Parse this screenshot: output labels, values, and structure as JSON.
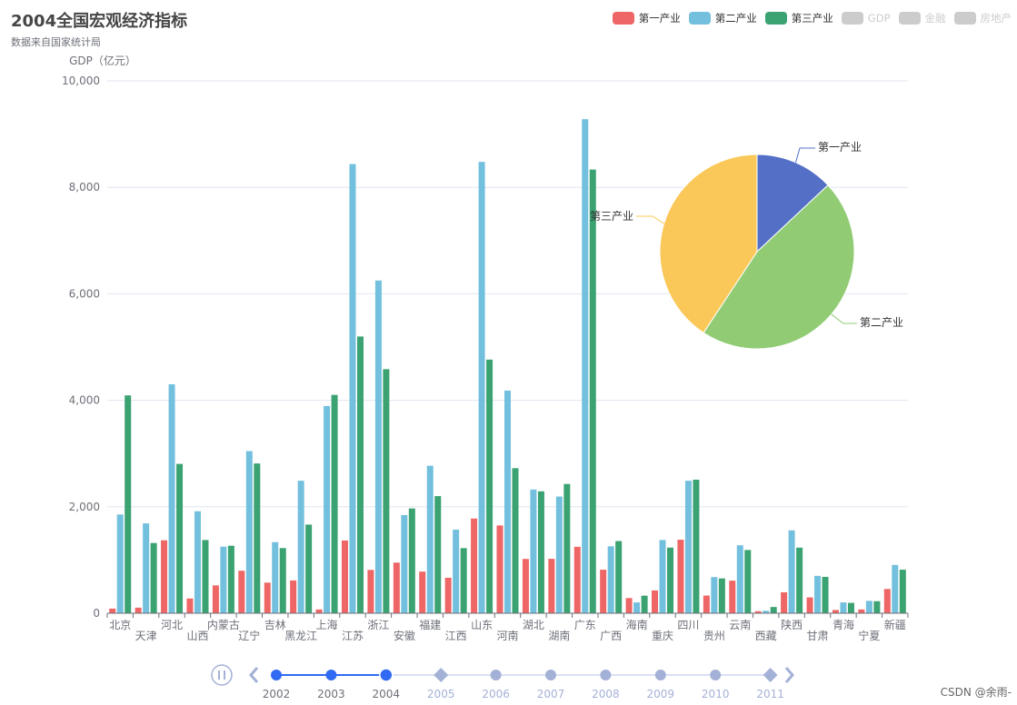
{
  "header": {
    "title": "2004全国宏观经济指标",
    "subtitle": "数据来自国家统计局"
  },
  "legend": [
    {
      "label": "第一产业",
      "color": "#ee6666",
      "active": true
    },
    {
      "label": "第二产业",
      "color": "#73c0de",
      "active": true
    },
    {
      "label": "第三产业",
      "color": "#3ba272",
      "active": true
    },
    {
      "label": "GDP",
      "color": "#cccccc",
      "active": false
    },
    {
      "label": "金融",
      "color": "#cccccc",
      "active": false
    },
    {
      "label": "房地产",
      "color": "#cccccc",
      "active": false
    }
  ],
  "chart_data": [
    {
      "type": "bar",
      "ylabel": "GDP（亿元）",
      "ylim": [
        0,
        10000
      ],
      "yticks": [
        "0",
        "2,000",
        "4,000",
        "6,000",
        "8,000",
        "10,000"
      ],
      "grid": true,
      "categories": [
        "北京",
        "天津",
        "河北",
        "山西",
        "内蒙古",
        "辽宁",
        "吉林",
        "黑龙江",
        "上海",
        "江苏",
        "浙江",
        "安徽",
        "福建",
        "江西",
        "山东",
        "河南",
        "湖北",
        "湖南",
        "广东",
        "广西",
        "海南",
        "重庆",
        "四川",
        "贵州",
        "云南",
        "西藏",
        "陕西",
        "甘肃",
        "青海",
        "宁夏",
        "新疆"
      ],
      "series": [
        {
          "name": "第一产业",
          "color": "#ee6666",
          "values": [
            87,
            105,
            1370,
            277,
            523,
            798,
            575,
            616,
            71,
            1366,
            814,
            951,
            782,
            667,
            1779,
            1649,
            1020,
            1022,
            1248,
            818,
            285,
            428,
            1381,
            332,
            612,
            38,
            394,
            297,
            61,
            71,
            456
          ]
        },
        {
          "name": "第二产业",
          "color": "#73c0de",
          "values": [
            1854,
            1688,
            4301,
            1916,
            1251,
            3045,
            1335,
            2489,
            3892,
            8437,
            6250,
            1844,
            2771,
            1570,
            8478,
            4182,
            2324,
            2192,
            9280,
            1257,
            203,
            1376,
            2489,
            679,
            1277,
            47,
            1557,
            702,
            204,
            232,
            907
          ]
        },
        {
          "name": "第三产业",
          "color": "#3ba272",
          "values": [
            4092,
            1319,
            2805,
            1375,
            1268,
            2813,
            1224,
            1665,
            4101,
            5198,
            4584,
            1968,
            2200,
            1223,
            4764,
            2725,
            2290,
            2428,
            8334,
            1356,
            330,
            1233,
            2509,
            654,
            1188,
            117,
            1232,
            683,
            195,
            226,
            818
          ]
        }
      ]
    },
    {
      "type": "pie",
      "slices": [
        {
          "name": "第一产业",
          "value": 20768,
          "color": "#5470c6"
        },
        {
          "name": "第二产业",
          "value": 73904,
          "color": "#91cc75"
        },
        {
          "name": "第三产业",
          "value": 65018,
          "color": "#fac858"
        }
      ]
    }
  ],
  "timeline": {
    "years": [
      "2002",
      "2003",
      "2004",
      "2005",
      "2006",
      "2007",
      "2008",
      "2009",
      "2010",
      "2011"
    ],
    "current": "2004",
    "playing": true
  },
  "watermark": "CSDN @余雨-"
}
